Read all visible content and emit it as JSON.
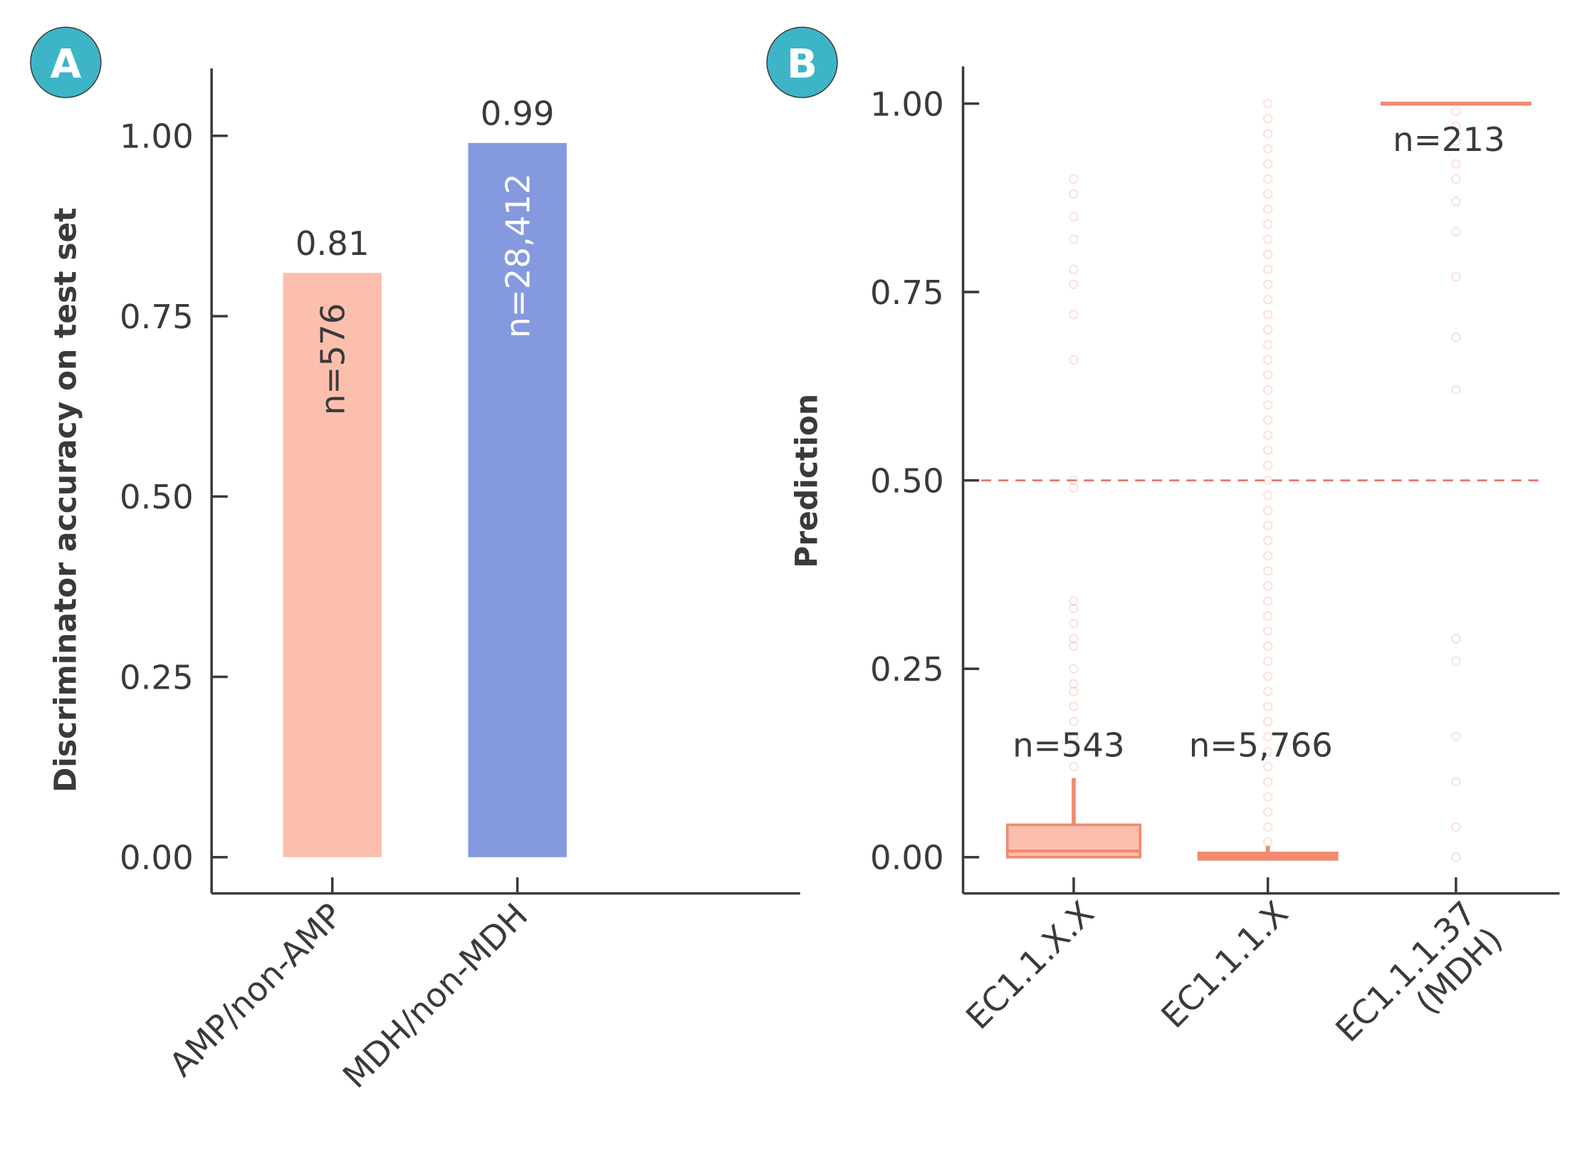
{
  "chart_data": [
    {
      "panel": "A",
      "type": "bar",
      "ylabel": "Discriminator accuracy on test set",
      "ylim": [
        -0.05,
        1.09
      ],
      "yticks": [
        "0.00",
        "0.25",
        "0.50",
        "0.75",
        "1.00"
      ],
      "categories": [
        "AMP/non-AMP",
        "MDH/non-MDH"
      ],
      "values": [
        0.81,
        0.99
      ],
      "value_labels": [
        "0.81",
        "0.99"
      ],
      "n_labels": [
        "n=576",
        "n=28,412"
      ],
      "colors": [
        "#fcbfae",
        "#8499de"
      ]
    },
    {
      "panel": "B",
      "type": "box",
      "ylabel": "Prediction",
      "ylim": [
        -0.05,
        1.05
      ],
      "yticks": [
        "0.00",
        "0.25",
        "0.50",
        "0.75",
        "1.00"
      ],
      "threshold": 0.5,
      "categories": [
        "EC1.1.X.X",
        "EC1.1.1.X",
        "EC1.1.1.37\n(MDH)"
      ],
      "n_labels": [
        "n=543",
        "n=5,766",
        "n=213"
      ],
      "boxes": [
        {
          "q1": 0.0,
          "median": 0.008,
          "q3": 0.043,
          "whisker_low": 0.0,
          "whisker_high": 0.105
        },
        {
          "q1": 0.0,
          "median": 0.003,
          "q3": 0.006,
          "whisker_low": 0.0,
          "whisker_high": 0.015
        },
        {
          "q1": 1.0,
          "median": 1.0,
          "q3": 1.0,
          "whisker_low": 1.0,
          "whisker_high": 1.0
        }
      ],
      "outliers": [
        [
          0.12,
          0.14,
          0.16,
          0.18,
          0.2,
          0.22,
          0.23,
          0.25,
          0.28,
          0.29,
          0.31,
          0.33,
          0.34,
          0.49,
          0.5,
          0.66,
          0.72,
          0.76,
          0.78,
          0.82,
          0.85,
          0.88,
          0.9
        ],
        [
          0.02,
          0.04,
          0.06,
          0.08,
          0.1,
          0.12,
          0.14,
          0.16,
          0.18,
          0.2,
          0.22,
          0.24,
          0.26,
          0.28,
          0.3,
          0.32,
          0.34,
          0.36,
          0.38,
          0.4,
          0.42,
          0.44,
          0.46,
          0.48,
          0.5,
          0.52,
          0.54,
          0.56,
          0.58,
          0.6,
          0.62,
          0.64,
          0.66,
          0.68,
          0.7,
          0.72,
          0.74,
          0.76,
          0.78,
          0.8,
          0.82,
          0.84,
          0.86,
          0.88,
          0.9,
          0.92,
          0.94,
          0.96,
          0.98,
          1.0
        ],
        [
          0.0,
          0.04,
          0.1,
          0.16,
          0.26,
          0.29,
          0.62,
          0.69,
          0.77,
          0.83,
          0.87,
          0.9,
          0.92,
          0.95,
          0.97,
          0.99
        ]
      ],
      "color": "#f08a70",
      "box_fill": "#fcbfae",
      "threshold_color": "#e07a72"
    }
  ],
  "badges": {
    "a": "A",
    "b": "B",
    "color": "#3db5c6"
  }
}
